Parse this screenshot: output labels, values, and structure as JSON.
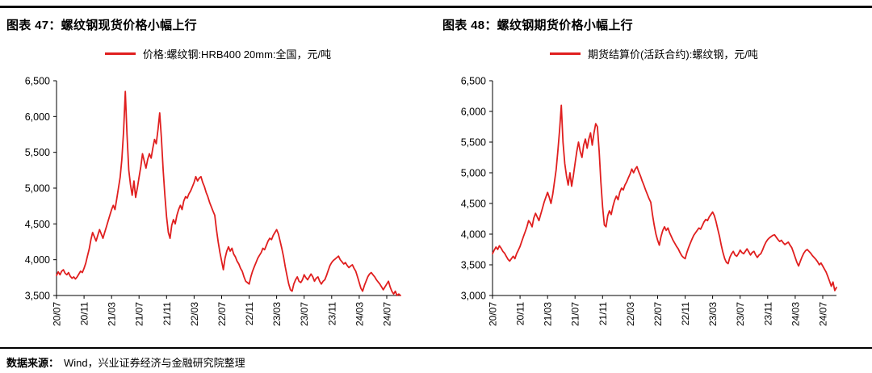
{
  "page": {
    "background": "#ffffff",
    "accent_red": "#e01f1f"
  },
  "footer": {
    "label": "数据来源：",
    "text": "Wind，兴业证券经济与金融研究院整理"
  },
  "chart_data": [
    {
      "type": "line",
      "panel_title": "图表 47：螺纹钢现货价格小幅上行",
      "legend_label": "价格:螺纹钢:HRB400 20mm:全国，元/吨",
      "line_color": "#e01f1f",
      "ylim": [
        3500,
        6500
      ],
      "y_tick_step": 500,
      "x_tick_labels": [
        "20/07",
        "20/11",
        "21/03",
        "21/07",
        "21/11",
        "22/03",
        "22/07",
        "22/11",
        "23/03",
        "23/07",
        "23/11",
        "24/03",
        "24/07"
      ],
      "x_tick_every_months": 4,
      "x_step_months": 0.25,
      "values": [
        3780,
        3830,
        3790,
        3840,
        3860,
        3810,
        3790,
        3820,
        3770,
        3740,
        3760,
        3730,
        3760,
        3800,
        3840,
        3820,
        3880,
        3950,
        4050,
        4150,
        4280,
        4380,
        4320,
        4260,
        4340,
        4420,
        4360,
        4300,
        4380,
        4460,
        4540,
        4620,
        4700,
        4760,
        4700,
        4850,
        5000,
        5150,
        5400,
        5800,
        6350,
        5750,
        5250,
        5050,
        4900,
        5100,
        4870,
        5000,
        5150,
        5300,
        5480,
        5380,
        5280,
        5400,
        5480,
        5420,
        5560,
        5680,
        5620,
        5820,
        6050,
        5700,
        5250,
        4900,
        4600,
        4380,
        4300,
        4480,
        4560,
        4500,
        4620,
        4700,
        4760,
        4700,
        4820,
        4880,
        4860,
        4920,
        4960,
        5020,
        5080,
        5160,
        5100,
        5140,
        5160,
        5080,
        5020,
        4940,
        4880,
        4800,
        4740,
        4680,
        4620,
        4420,
        4250,
        4100,
        3980,
        3860,
        4020,
        4120,
        4180,
        4120,
        4160,
        4080,
        4040,
        3980,
        3940,
        3880,
        3840,
        3760,
        3700,
        3680,
        3660,
        3760,
        3840,
        3900,
        3960,
        4020,
        4060,
        4100,
        4160,
        4140,
        4200,
        4260,
        4300,
        4280,
        4340,
        4380,
        4420,
        4360,
        4260,
        4160,
        4040,
        3900,
        3780,
        3660,
        3580,
        3560,
        3660,
        3720,
        3760,
        3700,
        3680,
        3720,
        3790,
        3750,
        3720,
        3760,
        3800,
        3760,
        3700,
        3740,
        3760,
        3700,
        3660,
        3700,
        3720,
        3780,
        3850,
        3920,
        3960,
        3990,
        4010,
        4030,
        4050,
        4000,
        3970,
        3940,
        3960,
        3920,
        3890,
        3910,
        3930,
        3880,
        3840,
        3760,
        3680,
        3600,
        3560,
        3640,
        3700,
        3760,
        3800,
        3820,
        3790,
        3760,
        3720,
        3690,
        3660,
        3620,
        3580,
        3620,
        3660,
        3700,
        3620,
        3560,
        3520,
        3560,
        3480,
        3520,
        3460
      ]
    },
    {
      "type": "line",
      "panel_title": "图表 48：螺纹钢期货价格小幅上行",
      "legend_label": "期货结算价(活跃合约):螺纹钢，元/吨",
      "line_color": "#e01f1f",
      "ylim": [
        3000,
        6500
      ],
      "y_tick_step": 500,
      "x_tick_labels": [
        "20/07",
        "20/11",
        "21/03",
        "21/07",
        "21/11",
        "22/03",
        "22/07",
        "22/11",
        "23/03",
        "23/07",
        "23/11",
        "24/03",
        "24/07"
      ],
      "x_tick_every_months": 4,
      "x_step_months": 0.25,
      "values": [
        3680,
        3740,
        3790,
        3750,
        3810,
        3770,
        3720,
        3690,
        3640,
        3590,
        3560,
        3600,
        3640,
        3600,
        3680,
        3740,
        3800,
        3880,
        3960,
        4040,
        4120,
        4220,
        4180,
        4120,
        4260,
        4340,
        4280,
        4220,
        4320,
        4420,
        4520,
        4600,
        4680,
        4600,
        4500,
        4650,
        4850,
        5050,
        5350,
        5700,
        6100,
        5500,
        5150,
        4950,
        4800,
        5000,
        4780,
        4950,
        5150,
        5350,
        5500,
        5350,
        5250,
        5450,
        5550,
        5400,
        5550,
        5650,
        5450,
        5650,
        5800,
        5750,
        5350,
        4850,
        4450,
        4150,
        4120,
        4300,
        4380,
        4320,
        4450,
        4550,
        4620,
        4560,
        4680,
        4750,
        4720,
        4800,
        4850,
        4920,
        4980,
        5060,
        5000,
        5060,
        5100,
        5020,
        4950,
        4870,
        4800,
        4720,
        4650,
        4580,
        4520,
        4320,
        4150,
        4000,
        3900,
        3820,
        3960,
        4060,
        4120,
        4060,
        4100,
        4020,
        3960,
        3900,
        3850,
        3800,
        3760,
        3700,
        3650,
        3620,
        3600,
        3700,
        3780,
        3850,
        3920,
        3980,
        4020,
        4060,
        4100,
        4080,
        4140,
        4200,
        4240,
        4220,
        4280,
        4320,
        4360,
        4300,
        4200,
        4080,
        3960,
        3820,
        3700,
        3600,
        3540,
        3520,
        3620,
        3680,
        3720,
        3660,
        3640,
        3680,
        3740,
        3700,
        3680,
        3720,
        3760,
        3710,
        3660,
        3700,
        3720,
        3660,
        3620,
        3660,
        3680,
        3740,
        3810,
        3870,
        3910,
        3940,
        3960,
        3980,
        3990,
        3950,
        3910,
        3880,
        3900,
        3860,
        3830,
        3850,
        3870,
        3820,
        3780,
        3700,
        3620,
        3540,
        3480,
        3560,
        3630,
        3690,
        3730,
        3750,
        3720,
        3690,
        3650,
        3620,
        3590,
        3550,
        3500,
        3530,
        3480,
        3430,
        3380,
        3310,
        3230,
        3150,
        3220,
        3080,
        3130
      ]
    }
  ]
}
